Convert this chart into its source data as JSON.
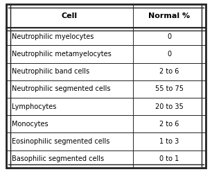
{
  "title_col1": "Cell",
  "title_col2": "Normal %",
  "rows": [
    [
      "Neutrophilic myelocytes",
      "0"
    ],
    [
      "Neutrophilic metamyelocytes",
      "0"
    ],
    [
      "Neutrophilic band cells",
      "2 to 6"
    ],
    [
      "Neutrophilic segmented cells",
      "55 to 75"
    ],
    [
      "Lymphocytes",
      "20 to 35"
    ],
    [
      "Monocytes",
      "2 to 6"
    ],
    [
      "Eosinophilic segmented cells",
      "1 to 3"
    ],
    [
      "Basophilic segmented cells",
      "0 to 1"
    ]
  ],
  "bg_color": "#ffffff",
  "header_bg": "#ffffff",
  "border_color": "#222222",
  "text_color": "#000000",
  "font_size": 7.0,
  "header_font_size": 8.0,
  "col_split": 0.635
}
